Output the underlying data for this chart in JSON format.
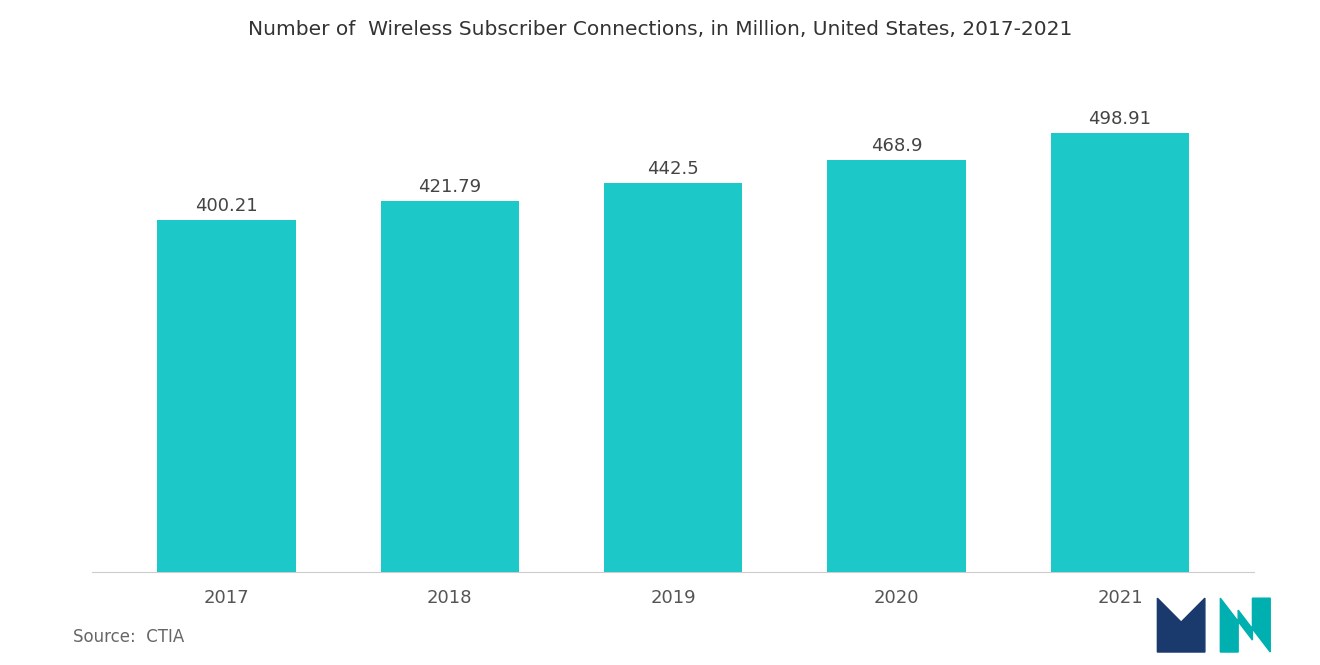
{
  "title": "Number of  Wireless Subscriber Connections, in Million, United States, 2017-2021",
  "categories": [
    "2017",
    "2018",
    "2019",
    "2020",
    "2021"
  ],
  "values": [
    400.21,
    421.79,
    442.5,
    468.9,
    498.91
  ],
  "bar_color": "#1DC8C8",
  "background_color": "#ffffff",
  "title_fontsize": 14.5,
  "label_fontsize": 13,
  "tick_fontsize": 13,
  "source_text": "Source:  CTIA",
  "source_fontsize": 12,
  "ylim": [
    0,
    560
  ],
  "bar_width": 0.62,
  "logo_left_color": "#1a3a6e",
  "logo_right_color": "#00b0b0"
}
